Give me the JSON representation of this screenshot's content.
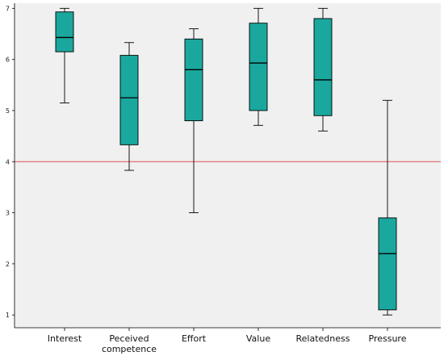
{
  "chart_data": {
    "type": "boxplot",
    "categories": [
      "Interest",
      "Peceived competence",
      "Effort",
      "Value",
      "Relatedness",
      "Pressure"
    ],
    "category_label_lines": [
      [
        "Interest"
      ],
      [
        "Peceived",
        "competence"
      ],
      [
        "Effort"
      ],
      [
        "Value"
      ],
      [
        "Relatedness"
      ],
      [
        "Pressure"
      ]
    ],
    "boxes": [
      {
        "min": 5.15,
        "q1": 6.15,
        "median": 6.43,
        "q3": 6.93,
        "max": 7.0
      },
      {
        "min": 3.83,
        "q1": 4.33,
        "median": 5.25,
        "q3": 6.08,
        "max": 6.33
      },
      {
        "min": 3.0,
        "q1": 4.8,
        "median": 5.8,
        "q3": 6.4,
        "max": 6.6
      },
      {
        "min": 4.71,
        "q1": 5.0,
        "median": 5.93,
        "q3": 6.71,
        "max": 7.0
      },
      {
        "min": 4.6,
        "q1": 4.9,
        "median": 5.6,
        "q3": 6.8,
        "max": 7.0
      },
      {
        "min": 1.0,
        "q1": 1.1,
        "median": 2.2,
        "q3": 2.9,
        "max": 5.2
      }
    ],
    "y_ticks": [
      1,
      2,
      3,
      4,
      5,
      6,
      7
    ],
    "ylim": [
      0.75,
      7.1
    ],
    "reference_line": {
      "y": 4,
      "color": "#d9534f"
    },
    "colors": {
      "box_fill": "#1aa89e",
      "box_stroke": "#000000",
      "plot_background": "#f0f0f0",
      "axis": "#000000"
    },
    "title": "",
    "xlabel": "",
    "ylabel": "",
    "grid": false,
    "legend": "none"
  }
}
